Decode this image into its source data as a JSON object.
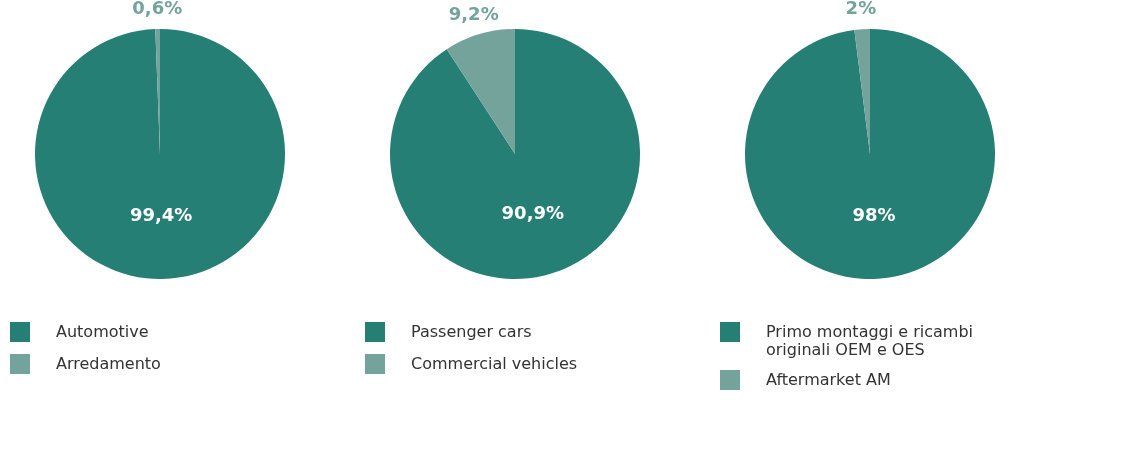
{
  "chart_data": [
    {
      "type": "pie",
      "categories": [
        "Automotive",
        "Arredamento"
      ],
      "values": [
        99.4,
        0.6
      ],
      "colors": [
        "#267f74",
        "#74a39c"
      ],
      "value_labels": [
        "99,4%",
        "0,6%"
      ],
      "legend": "bottom"
    },
    {
      "type": "pie",
      "categories": [
        "Passenger cars",
        "Commercial vehicles"
      ],
      "values": [
        90.9,
        9.2
      ],
      "colors": [
        "#267f74",
        "#74a39c"
      ],
      "value_labels": [
        "90,9%",
        "9,2%"
      ],
      "legend": "bottom"
    },
    {
      "type": "pie",
      "categories": [
        "Primo montaggi e ricambi originali OEM e OES",
        "Aftermarket AM"
      ],
      "values": [
        98,
        2
      ],
      "colors": [
        "#267f74",
        "#74a39c"
      ],
      "value_labels": [
        "98%",
        "2%"
      ],
      "legend": "bottom"
    }
  ]
}
